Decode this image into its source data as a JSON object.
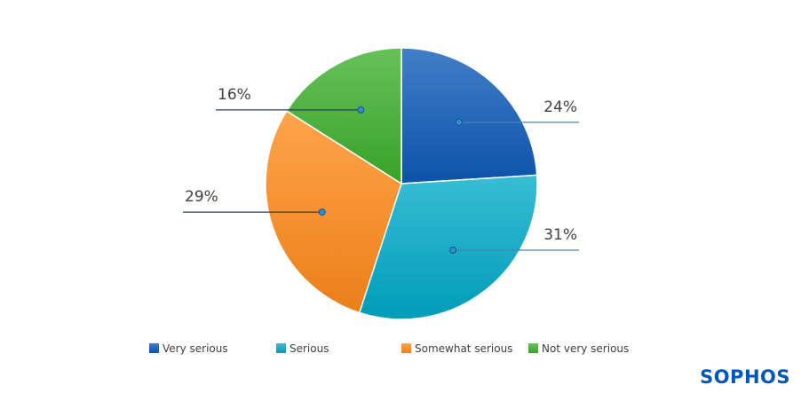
{
  "chart_data": {
    "type": "pie",
    "title": "",
    "series": [
      {
        "name": "Very serious",
        "value": 24,
        "label": "24%",
        "color": "#0d5ab8"
      },
      {
        "name": "Serious",
        "value": 31,
        "label": "31%",
        "color": "#00aac8"
      },
      {
        "name": "Somewhat serious",
        "value": 29,
        "label": "29%",
        "color": "#ff8a1a"
      },
      {
        "name": "Not very serious",
        "value": 16,
        "label": "16%",
        "color": "#3cb02c"
      }
    ],
    "legend_placement": "bottom"
  },
  "branding": {
    "logo_text": "SOPHOS",
    "logo_color": "#0057b8"
  }
}
